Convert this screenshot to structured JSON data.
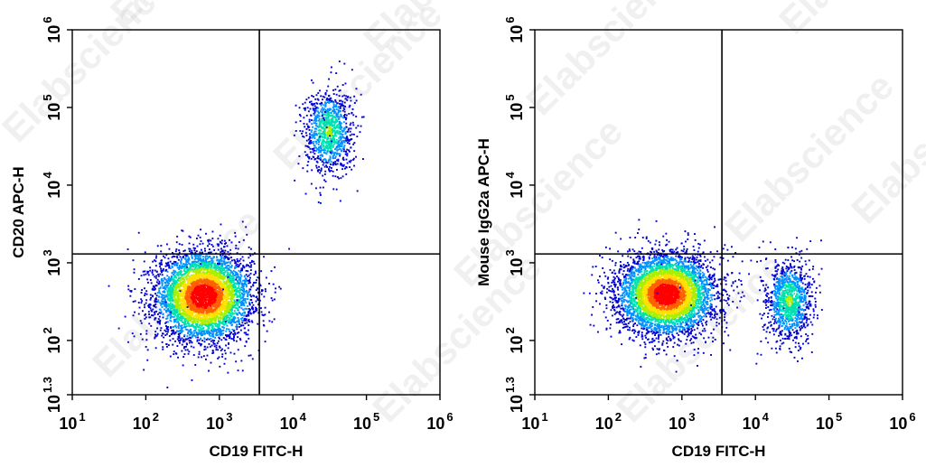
{
  "watermark": "Elabscience",
  "watermark_symbol": "®",
  "colors": {
    "axis": "#000000",
    "gate": "#000000",
    "density_scale": [
      "#0000d0",
      "#0090ff",
      "#00e0b0",
      "#aaee00",
      "#ffe000",
      "#ff6000",
      "#ff0000"
    ]
  },
  "chart_data": [
    {
      "type": "scatter",
      "subtype": "flow-cytometry-density-dot-plot",
      "xlabel": "CD19 FITC-H",
      "ylabel": "CD20 APC-H",
      "x_scale": "log",
      "y_scale": "log",
      "xlim": [
        10,
        1000000
      ],
      "ylim": [
        20,
        1000000
      ],
      "x_ticks": [
        {
          "value": 10,
          "base": "10",
          "exp": "1"
        },
        {
          "value": 100,
          "base": "10",
          "exp": "2"
        },
        {
          "value": 1000,
          "base": "10",
          "exp": "3"
        },
        {
          "value": 10000,
          "base": "10",
          "exp": "4"
        },
        {
          "value": 100000,
          "base": "10",
          "exp": "5"
        },
        {
          "value": 1000000,
          "base": "10",
          "exp": "6"
        }
      ],
      "y_ticks": [
        {
          "value": 20,
          "base": "10",
          "exp": "1.3"
        },
        {
          "value": 100,
          "base": "10",
          "exp": "2"
        },
        {
          "value": 1000,
          "base": "10",
          "exp": "3"
        },
        {
          "value": 10000,
          "base": "10",
          "exp": "4"
        },
        {
          "value": 100000,
          "base": "10",
          "exp": "5"
        },
        {
          "value": 1000000,
          "base": "10",
          "exp": "6"
        }
      ],
      "quadrant_gate": {
        "x": 3500,
        "y": 1300
      },
      "populations": [
        {
          "center": [
            600,
            380
          ],
          "spread_log10": [
            0.32,
            0.28
          ],
          "count": 5000,
          "peak_density": 1.0
        },
        {
          "center": [
            30000,
            50000
          ],
          "spread_log10": [
            0.16,
            0.26
          ],
          "count": 1000,
          "peak_density": 0.45
        }
      ]
    },
    {
      "type": "scatter",
      "subtype": "flow-cytometry-density-dot-plot",
      "xlabel": "CD19 FITC-H",
      "ylabel": "Mouse IgG2a APC-H",
      "x_scale": "log",
      "y_scale": "log",
      "xlim": [
        10,
        1000000
      ],
      "ylim": [
        20,
        1000000
      ],
      "x_ticks": [
        {
          "value": 10,
          "base": "10",
          "exp": "1"
        },
        {
          "value": 100,
          "base": "10",
          "exp": "2"
        },
        {
          "value": 1000,
          "base": "10",
          "exp": "3"
        },
        {
          "value": 10000,
          "base": "10",
          "exp": "4"
        },
        {
          "value": 100000,
          "base": "10",
          "exp": "5"
        },
        {
          "value": 1000000,
          "base": "10",
          "exp": "6"
        }
      ],
      "y_ticks": [
        {
          "value": 20,
          "base": "10",
          "exp": "1.3"
        },
        {
          "value": 100,
          "base": "10",
          "exp": "2"
        },
        {
          "value": 1000,
          "base": "10",
          "exp": "3"
        },
        {
          "value": 10000,
          "base": "10",
          "exp": "4"
        },
        {
          "value": 100000,
          "base": "10",
          "exp": "5"
        },
        {
          "value": 1000000,
          "base": "10",
          "exp": "6"
        }
      ],
      "quadrant_gate": {
        "x": 3500,
        "y": 1300
      },
      "populations": [
        {
          "center": [
            600,
            400
          ],
          "spread_log10": [
            0.32,
            0.25
          ],
          "count": 5000,
          "peak_density": 1.0
        },
        {
          "center": [
            28000,
            330
          ],
          "spread_log10": [
            0.15,
            0.25
          ],
          "count": 1100,
          "peak_density": 0.45
        }
      ]
    }
  ]
}
